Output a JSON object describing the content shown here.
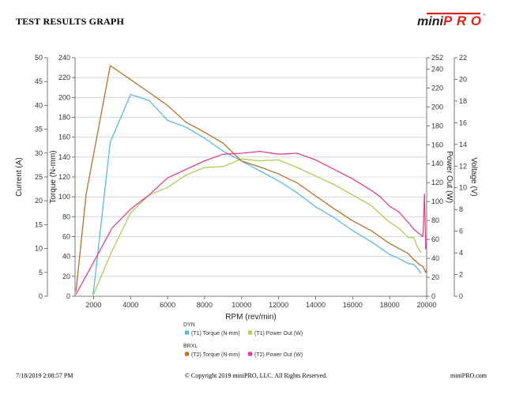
{
  "header": {
    "title": "TEST RESULTS GRAPH",
    "logo_text": "miniPRO",
    "logo_tm": "™"
  },
  "footer": {
    "timestamp": "7/18/2019 2:08:57 PM",
    "copyright": "© Copyright 2019 miniPRO, LLC. All Rights Reserved.",
    "website": "miniPRO.com"
  },
  "colors": {
    "dyn_torque": "#5BB8E6",
    "dyn_power": "#A9CF55",
    "brxl_torque": "#B5712E",
    "brxl_power": "#E0408F",
    "logo_red": "#D7261E"
  },
  "chart_data": {
    "type": "line",
    "xlabel": "RPM (rev/min)",
    "xlim": [
      1000,
      20000
    ],
    "xticks": [
      2000,
      4000,
      6000,
      8000,
      10000,
      12000,
      14000,
      16000,
      18000,
      20000
    ],
    "axes": {
      "current": {
        "label": "Current (A)",
        "lim": [
          0,
          50
        ],
        "ticks": [
          0,
          5,
          10,
          15,
          20,
          25,
          30,
          35,
          40,
          45,
          50
        ]
      },
      "torque": {
        "label": "Torque (N-mm)",
        "lim": [
          0,
          240
        ],
        "ticks": [
          0,
          20,
          40,
          60,
          80,
          100,
          120,
          140,
          160,
          180,
          200,
          220,
          240
        ]
      },
      "power": {
        "label": "Power Out (W)",
        "lim": [
          0,
          252
        ],
        "ticks": [
          0,
          20,
          40,
          60,
          80,
          100,
          120,
          140,
          160,
          180,
          200,
          220,
          240,
          252
        ]
      },
      "voltage": {
        "label": "Voltage (V)",
        "lim": [
          0,
          22
        ],
        "ticks": [
          0,
          2,
          4,
          6,
          8,
          10,
          12,
          14,
          16,
          18,
          20,
          22
        ]
      }
    },
    "grid": true,
    "legend": {
      "groups": [
        {
          "title": "DYN",
          "items": [
            {
              "label": "(T1) Torque (N-mm)",
              "color": "#5BB8E6"
            },
            {
              "label": "(T1) Power Out (W)",
              "color": "#A9CF55"
            }
          ]
        },
        {
          "title": "BRXL",
          "items": [
            {
              "label": "(T2) Torque (N-mm)",
              "color": "#B5712E"
            },
            {
              "label": "(T2) Power Out (W)",
              "color": "#E0408F"
            }
          ]
        }
      ]
    },
    "series": [
      {
        "name": "(T1) Torque (N-mm)",
        "axis": "torque",
        "color": "#5BB8E6",
        "x": [
          1950,
          2000,
          2900,
          4000,
          5000,
          6000,
          7000,
          8000,
          9000,
          10000,
          11000,
          12000,
          13000,
          14000,
          15000,
          16000,
          17000,
          18000,
          18500,
          19000,
          19300,
          19500,
          19700
        ],
        "y": [
          2,
          5,
          155,
          203,
          197,
          177,
          170,
          159,
          146,
          136,
          126,
          116,
          104,
          90,
          79,
          66,
          55,
          42,
          38,
          33,
          32,
          28,
          23
        ]
      },
      {
        "name": "(T1) Power Out (W)",
        "axis": "power",
        "color": "#A9CF55",
        "x": [
          1950,
          2000,
          3000,
          4000,
          5000,
          6000,
          7000,
          8000,
          9000,
          10000,
          11000,
          12000,
          13000,
          14000,
          15000,
          16000,
          17000,
          18000,
          18500,
          19000,
          19300,
          19500,
          19700
        ],
        "y": [
          1,
          2,
          48,
          88,
          107,
          115,
          128,
          136,
          137,
          145,
          143,
          144,
          136,
          127,
          118,
          107,
          96,
          78,
          72,
          62,
          62,
          52,
          46
        ]
      },
      {
        "name": "(T2) Torque (N-mm)",
        "axis": "torque",
        "color": "#B5712E",
        "x": [
          1050,
          1600,
          2900,
          4000,
          5000,
          6000,
          7000,
          8000,
          9000,
          10000,
          11000,
          12000,
          13000,
          14000,
          15000,
          16000,
          17000,
          18000,
          18500,
          19000,
          19300,
          19600,
          19800,
          19950,
          20000
        ],
        "y": [
          5,
          103,
          232,
          218,
          205,
          192,
          175,
          165,
          154,
          136,
          130,
          123,
          114,
          101,
          88,
          76,
          66,
          53,
          48,
          43,
          37,
          32,
          30,
          24,
          27
        ]
      },
      {
        "name": "(T2) Power Out (W)",
        "axis": "power",
        "color": "#E0408F",
        "x": [
          1050,
          1500,
          2000,
          3000,
          4000,
          5000,
          6000,
          7000,
          8000,
          9000,
          10000,
          11000,
          12000,
          13000,
          14000,
          15000,
          16000,
          17000,
          17500,
          18000,
          18500,
          19000,
          19300,
          19600,
          19800,
          19880,
          19950,
          20000
        ],
        "y": [
          2,
          18,
          36,
          72,
          92,
          107,
          125,
          134,
          143,
          150,
          151,
          153,
          150,
          151,
          144,
          134,
          124,
          112,
          105,
          95,
          89,
          78,
          71,
          66,
          63,
          108,
          50,
          55
        ]
      }
    ]
  }
}
